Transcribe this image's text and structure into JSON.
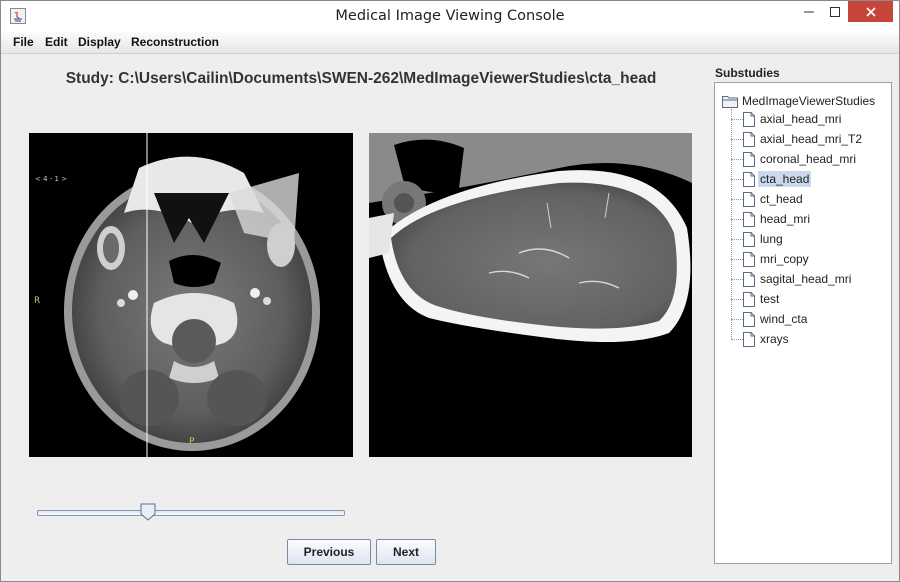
{
  "window": {
    "title": "Medical Image Viewing Console"
  },
  "menu": [
    {
      "label": "File"
    },
    {
      "label": "Edit"
    },
    {
      "label": "Display"
    },
    {
      "label": "Reconstruction"
    }
  ],
  "study": {
    "title": "Study: C:\\Users\\Cailin\\Documents\\SWEN-262\\MedImageViewerStudies\\cta_head"
  },
  "viewer": {
    "left_image": {
      "overlay_top_left": "< 4 - 1 >",
      "orientation_left": "R",
      "orientation_bottom": "P"
    }
  },
  "slider": {
    "position_fraction": 0.36
  },
  "buttons": {
    "previous": "Previous",
    "next": "Next"
  },
  "substudies": {
    "label": "Substudies",
    "root": "MedImageViewerStudies",
    "selected": "cta_head",
    "items": [
      {
        "label": "axial_head_mri"
      },
      {
        "label": "axial_head_mri_T2"
      },
      {
        "label": "coronal_head_mri"
      },
      {
        "label": "cta_head"
      },
      {
        "label": "ct_head"
      },
      {
        "label": "head_mri"
      },
      {
        "label": "lung"
      },
      {
        "label": "mri_copy"
      },
      {
        "label": "sagital_head_mri"
      },
      {
        "label": "test"
      },
      {
        "label": "wind_cta"
      },
      {
        "label": "xrays"
      }
    ]
  },
  "colors": {
    "close_button": "#c7463c",
    "selection": "#c9d8ec",
    "scan_background": "#000000"
  }
}
